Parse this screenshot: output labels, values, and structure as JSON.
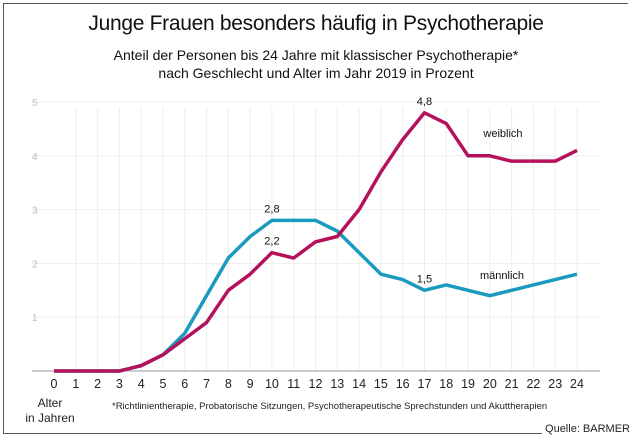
{
  "chart_data": {
    "type": "line",
    "title": "Junge Frauen besonders häufig in Psychotherapie",
    "subtitle": [
      "Anteil der Personen bis 24 Jahre mit klassischer Psychotherapie*",
      "nach Geschlecht und Alter im Jahr 2019 in Prozent"
    ],
    "xlabel": "Alter in Jahren",
    "ylabel": "",
    "x": [
      0,
      1,
      2,
      3,
      4,
      5,
      6,
      7,
      8,
      9,
      10,
      11,
      12,
      13,
      14,
      15,
      16,
      17,
      18,
      19,
      20,
      21,
      22,
      23,
      24
    ],
    "ylim": [
      0,
      5
    ],
    "yticks": [
      1,
      2,
      3,
      4,
      5
    ],
    "grid": "vertical and horizontal light",
    "series": [
      {
        "name": "weiblich",
        "color": "#b5125e",
        "values": [
          0,
          0,
          0,
          0,
          0.1,
          0.3,
          0.6,
          0.9,
          1.5,
          1.8,
          2.2,
          2.1,
          2.4,
          2.5,
          3.0,
          3.7,
          4.3,
          4.8,
          4.6,
          4.0,
          4.0,
          3.9,
          3.9,
          3.9,
          4.1
        ]
      },
      {
        "name": "männlich",
        "color": "#1b9ac0",
        "values": [
          0,
          0,
          0,
          0,
          0.1,
          0.3,
          0.7,
          1.4,
          2.1,
          2.5,
          2.8,
          2.8,
          2.8,
          2.6,
          2.2,
          1.8,
          1.7,
          1.5,
          1.6,
          1.5,
          1.4,
          1.5,
          1.6,
          1.7,
          1.8
        ]
      }
    ],
    "annotations": [
      {
        "series": 0,
        "x": 17,
        "text": "4,8"
      },
      {
        "series": 0,
        "x": 10,
        "text": "2,2"
      },
      {
        "series": 1,
        "x": 10,
        "text": "2,8"
      },
      {
        "series": 1,
        "x": 17,
        "text": "1,5"
      }
    ],
    "footnote": "*Richtlinientherapie, Probatorische Sitzungen, Psychotherapeutische Sprechstunden und Akuttherapien",
    "source": "Quelle: BARMER"
  },
  "xaxis_label_lines": [
    "Alter",
    "in Jahren"
  ]
}
